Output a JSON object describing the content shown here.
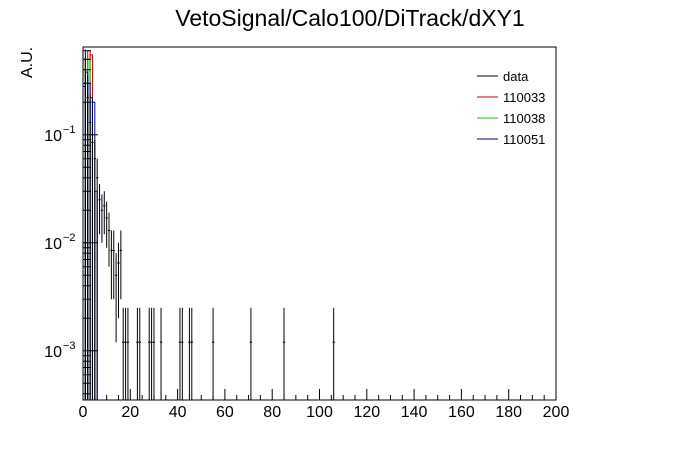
{
  "chart_data": {
    "type": "histogram",
    "title": "VetoSignal/Calo100/DiTrack/dXY1",
    "xlabel": "",
    "ylabel": "A.U.",
    "xlim": [
      0,
      200
    ],
    "ylim": [
      0.00035,
      0.65
    ],
    "yscale": "log",
    "grid": false,
    "legend_position": "top-right",
    "x_tick_labels": [
      "0",
      "20",
      "40",
      "60",
      "80",
      "100",
      "120",
      "140",
      "160",
      "180",
      "200"
    ],
    "y_tick_labels": [
      {
        "base": "10",
        "exp": "−1",
        "value": 0.1
      },
      {
        "base": "10",
        "exp": "−2",
        "value": 0.01
      },
      {
        "base": "10",
        "exp": "−3",
        "value": 0.001
      }
    ],
    "series": [
      {
        "name": "data",
        "color": "#000000",
        "style": "points-with-errors",
        "points": [
          {
            "x": 1,
            "y": 0.3,
            "lo": 0.0003,
            "hi": 0.62
          },
          {
            "x": 2,
            "y": 0.22,
            "lo": 0.0003,
            "hi": 0.35
          },
          {
            "x": 3,
            "y": 0.13,
            "lo": 0.0003,
            "hi": 0.24
          },
          {
            "x": 4,
            "y": 0.085,
            "lo": 0.0003,
            "hi": 0.13
          },
          {
            "x": 5,
            "y": 0.06,
            "lo": 0.0003,
            "hi": 0.09
          },
          {
            "x": 6,
            "y": 0.04,
            "lo": 0.0003,
            "hi": 0.06
          },
          {
            "x": 7,
            "y": 0.025,
            "lo": 0.012,
            "hi": 0.035
          },
          {
            "x": 8,
            "y": 0.02,
            "lo": 0.01,
            "hi": 0.028
          },
          {
            "x": 9,
            "y": 0.022,
            "lo": 0.012,
            "hi": 0.03
          },
          {
            "x": 10,
            "y": 0.017,
            "lo": 0.009,
            "hi": 0.024
          },
          {
            "x": 11,
            "y": 0.013,
            "lo": 0.006,
            "hi": 0.019
          },
          {
            "x": 12,
            "y": 0.0085,
            "lo": 0.003,
            "hi": 0.013
          },
          {
            "x": 13,
            "y": 0.0085,
            "lo": 0.003,
            "hi": 0.013
          },
          {
            "x": 14,
            "y": 0.005,
            "lo": 0.0012,
            "hi": 0.008
          },
          {
            "x": 15,
            "y": 0.0065,
            "lo": 0.002,
            "hi": 0.01
          },
          {
            "x": 16,
            "y": 0.0085,
            "lo": 0.003,
            "hi": 0.013
          },
          {
            "x": 17,
            "y": 0.0012,
            "lo": 0.0003,
            "hi": 0.0025
          },
          {
            "x": 18,
            "y": 0.0012,
            "lo": 0.0003,
            "hi": 0.0025
          },
          {
            "x": 19,
            "y": 0.0012,
            "lo": 0.0003,
            "hi": 0.0025
          },
          {
            "x": 23,
            "y": 0.0012,
            "lo": 0.0003,
            "hi": 0.0025
          },
          {
            "x": 24,
            "y": 0.0012,
            "lo": 0.0003,
            "hi": 0.0025
          },
          {
            "x": 28,
            "y": 0.0012,
            "lo": 0.0003,
            "hi": 0.0025
          },
          {
            "x": 29,
            "y": 0.0012,
            "lo": 0.0003,
            "hi": 0.0025
          },
          {
            "x": 30,
            "y": 0.0012,
            "lo": 0.0003,
            "hi": 0.0025
          },
          {
            "x": 33,
            "y": 0.0012,
            "lo": 0.0003,
            "hi": 0.0025
          },
          {
            "x": 41,
            "y": 0.0012,
            "lo": 0.0003,
            "hi": 0.0025
          },
          {
            "x": 42,
            "y": 0.0012,
            "lo": 0.0003,
            "hi": 0.0025
          },
          {
            "x": 45,
            "y": 0.0012,
            "lo": 0.0003,
            "hi": 0.0025
          },
          {
            "x": 46,
            "y": 0.0012,
            "lo": 0.0003,
            "hi": 0.0025
          },
          {
            "x": 55,
            "y": 0.0012,
            "lo": 0.0003,
            "hi": 0.0025
          },
          {
            "x": 71,
            "y": 0.0012,
            "lo": 0.0003,
            "hi": 0.0025
          },
          {
            "x": 85,
            "y": 0.0012,
            "lo": 0.0003,
            "hi": 0.0025
          },
          {
            "x": 106,
            "y": 0.0012,
            "lo": 0.0003,
            "hi": 0.0025
          }
        ]
      },
      {
        "name": "110033",
        "color": "#cc0000",
        "style": "histogram",
        "bins": [
          [
            0,
            1,
            0.5
          ],
          [
            1,
            2,
            0.5
          ],
          [
            2,
            3,
            0.6
          ],
          [
            3,
            4,
            0.55
          ]
        ]
      },
      {
        "name": "110038",
        "color": "#00cc00",
        "style": "histogram",
        "bins": [
          [
            0,
            1,
            0.4
          ],
          [
            1,
            2,
            0.5
          ],
          [
            2,
            3,
            0.5
          ],
          [
            3,
            4,
            0.2
          ]
        ]
      },
      {
        "name": "110051",
        "color": "#000099",
        "style": "histogram",
        "bins": [
          [
            0,
            1,
            0.28
          ],
          [
            1,
            2,
            0.38
          ],
          [
            2,
            3,
            0.3
          ],
          [
            3,
            4,
            0.22
          ],
          [
            4,
            5,
            0.2
          ],
          [
            5,
            6,
            0.03
          ]
        ]
      }
    ]
  }
}
